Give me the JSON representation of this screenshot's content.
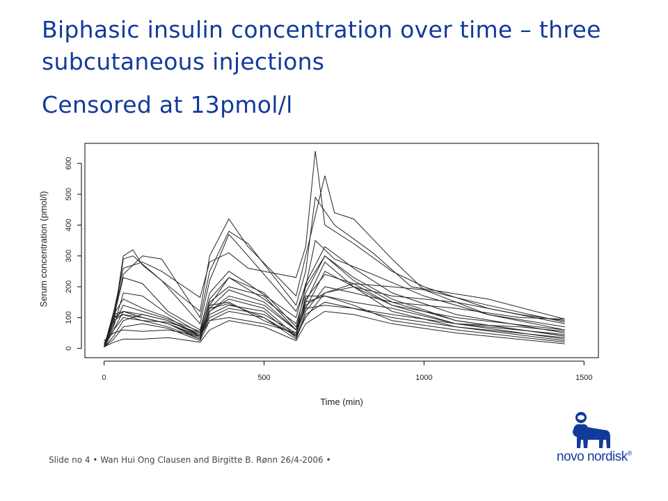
{
  "slide": {
    "title": "Biphasic insulin concentration over time – three subcutaneous injections",
    "subtitle": "Censored at 13pmol/l",
    "footer": "Slide no 4  •  Wan Hui Ong Clausen and Birgitte B. Rønn 26/4-2006  •",
    "logo_text": "novo nordisk",
    "logo_mark": "®",
    "brand_color": "#123a9c"
  },
  "chart_data": {
    "type": "line",
    "title": "",
    "xlabel": "Time (min)",
    "ylabel": "Serum concentration (pmol/l)",
    "xlim": [
      -60,
      1545
    ],
    "ylim": [
      -30,
      665
    ],
    "xticks": [
      0,
      500,
      1000,
      1500
    ],
    "yticks": [
      0,
      100,
      200,
      300,
      400,
      500,
      600
    ],
    "grid": false,
    "line_color": "#222222",
    "series": [
      {
        "values": [
          [
            0,
            5
          ],
          [
            30,
            120
          ],
          [
            60,
            260
          ],
          [
            120,
            280
          ],
          [
            180,
            250
          ],
          [
            300,
            165
          ],
          [
            330,
            280
          ],
          [
            390,
            310
          ],
          [
            450,
            260
          ],
          [
            600,
            230
          ],
          [
            630,
            330
          ],
          [
            660,
            640
          ],
          [
            690,
            400
          ],
          [
            780,
            340
          ],
          [
            900,
            250
          ],
          [
            1000,
            200
          ],
          [
            1200,
            130
          ],
          [
            1440,
            80
          ]
        ]
      },
      {
        "values": [
          [
            0,
            5
          ],
          [
            30,
            90
          ],
          [
            60,
            300
          ],
          [
            90,
            320
          ],
          [
            120,
            270
          ],
          [
            300,
            120
          ],
          [
            330,
            300
          ],
          [
            390,
            420
          ],
          [
            450,
            330
          ],
          [
            600,
            170
          ],
          [
            630,
            300
          ],
          [
            690,
            560
          ],
          [
            720,
            440
          ],
          [
            780,
            420
          ],
          [
            900,
            290
          ],
          [
            1000,
            190
          ],
          [
            1200,
            110
          ],
          [
            1440,
            60
          ]
        ]
      },
      {
        "values": [
          [
            0,
            5
          ],
          [
            30,
            110
          ],
          [
            60,
            240
          ],
          [
            120,
            300
          ],
          [
            180,
            290
          ],
          [
            300,
            100
          ],
          [
            330,
            250
          ],
          [
            390,
            380
          ],
          [
            450,
            340
          ],
          [
            600,
            140
          ],
          [
            630,
            250
          ],
          [
            660,
            490
          ],
          [
            720,
            400
          ],
          [
            840,
            310
          ],
          [
            960,
            200
          ],
          [
            1200,
            160
          ],
          [
            1440,
            95
          ]
        ]
      },
      {
        "values": [
          [
            0,
            10
          ],
          [
            30,
            80
          ],
          [
            60,
            290
          ],
          [
            90,
            300
          ],
          [
            180,
            220
          ],
          [
            300,
            80
          ],
          [
            330,
            220
          ],
          [
            390,
            370
          ],
          [
            450,
            300
          ],
          [
            600,
            120
          ],
          [
            630,
            200
          ],
          [
            660,
            350
          ],
          [
            720,
            290
          ],
          [
            840,
            240
          ],
          [
            1000,
            170
          ],
          [
            1200,
            110
          ],
          [
            1440,
            70
          ]
        ]
      },
      {
        "values": [
          [
            0,
            5
          ],
          [
            30,
            100
          ],
          [
            60,
            230
          ],
          [
            120,
            210
          ],
          [
            200,
            120
          ],
          [
            300,
            60
          ],
          [
            330,
            180
          ],
          [
            390,
            250
          ],
          [
            450,
            210
          ],
          [
            600,
            100
          ],
          [
            630,
            210
          ],
          [
            690,
            330
          ],
          [
            780,
            260
          ],
          [
            900,
            180
          ],
          [
            1100,
            110
          ],
          [
            1440,
            50
          ]
        ]
      },
      {
        "values": [
          [
            0,
            5
          ],
          [
            30,
            70
          ],
          [
            60,
            180
          ],
          [
            120,
            170
          ],
          [
            200,
            110
          ],
          [
            300,
            50
          ],
          [
            330,
            140
          ],
          [
            390,
            230
          ],
          [
            500,
            160
          ],
          [
            600,
            80
          ],
          [
            630,
            180
          ],
          [
            690,
            300
          ],
          [
            780,
            230
          ],
          [
            900,
            160
          ],
          [
            1100,
            90
          ],
          [
            1440,
            40
          ]
        ]
      },
      {
        "values": [
          [
            0,
            5
          ],
          [
            30,
            110
          ],
          [
            60,
            160
          ],
          [
            120,
            130
          ],
          [
            200,
            100
          ],
          [
            300,
            40
          ],
          [
            330,
            150
          ],
          [
            390,
            200
          ],
          [
            500,
            170
          ],
          [
            600,
            60
          ],
          [
            630,
            130
          ],
          [
            690,
            250
          ],
          [
            780,
            200
          ],
          [
            900,
            140
          ],
          [
            1100,
            80
          ],
          [
            1440,
            30
          ]
        ]
      },
      {
        "values": [
          [
            0,
            15
          ],
          [
            30,
            90
          ],
          [
            60,
            110
          ],
          [
            120,
            100
          ],
          [
            200,
            80
          ],
          [
            300,
            30
          ],
          [
            330,
            120
          ],
          [
            390,
            160
          ],
          [
            500,
            130
          ],
          [
            600,
            40
          ],
          [
            630,
            100
          ],
          [
            690,
            180
          ],
          [
            780,
            200
          ],
          [
            900,
            170
          ],
          [
            1100,
            150
          ],
          [
            1300,
            110
          ],
          [
            1440,
            90
          ]
        ]
      },
      {
        "values": [
          [
            0,
            5
          ],
          [
            30,
            60
          ],
          [
            60,
            100
          ],
          [
            120,
            90
          ],
          [
            200,
            70
          ],
          [
            300,
            30
          ],
          [
            330,
            110
          ],
          [
            390,
            140
          ],
          [
            500,
            120
          ],
          [
            600,
            35
          ],
          [
            630,
            120
          ],
          [
            690,
            200
          ],
          [
            780,
            180
          ],
          [
            900,
            150
          ],
          [
            1100,
            130
          ],
          [
            1300,
            100
          ],
          [
            1440,
            95
          ]
        ]
      },
      {
        "values": [
          [
            0,
            5
          ],
          [
            30,
            40
          ],
          [
            60,
            90
          ],
          [
            120,
            110
          ],
          [
            200,
            90
          ],
          [
            300,
            40
          ],
          [
            330,
            100
          ],
          [
            390,
            130
          ],
          [
            500,
            110
          ],
          [
            600,
            50
          ],
          [
            630,
            140
          ],
          [
            690,
            180
          ],
          [
            780,
            210
          ],
          [
            900,
            200
          ],
          [
            1000,
            190
          ],
          [
            1200,
            140
          ],
          [
            1440,
            85
          ]
        ]
      },
      {
        "values": [
          [
            0,
            5
          ],
          [
            30,
            100
          ],
          [
            60,
            120
          ],
          [
            120,
            100
          ],
          [
            200,
            80
          ],
          [
            300,
            35
          ],
          [
            330,
            130
          ],
          [
            390,
            145
          ],
          [
            500,
            100
          ],
          [
            600,
            40
          ],
          [
            630,
            150
          ],
          [
            690,
            170
          ],
          [
            780,
            150
          ],
          [
            900,
            130
          ],
          [
            1100,
            80
          ],
          [
            1440,
            45
          ]
        ]
      },
      {
        "values": [
          [
            0,
            5
          ],
          [
            30,
            30
          ],
          [
            60,
            70
          ],
          [
            120,
            80
          ],
          [
            200,
            65
          ],
          [
            300,
            25
          ],
          [
            330,
            90
          ],
          [
            390,
            120
          ],
          [
            500,
            100
          ],
          [
            600,
            30
          ],
          [
            630,
            110
          ],
          [
            690,
            150
          ],
          [
            780,
            130
          ],
          [
            900,
            100
          ],
          [
            1100,
            70
          ],
          [
            1440,
            25
          ]
        ]
      },
      {
        "values": [
          [
            0,
            5
          ],
          [
            30,
            100
          ],
          [
            60,
            110
          ],
          [
            120,
            90
          ],
          [
            200,
            85
          ],
          [
            300,
            50
          ],
          [
            330,
            140
          ],
          [
            390,
            150
          ],
          [
            500,
            90
          ],
          [
            600,
            45
          ],
          [
            630,
            170
          ],
          [
            690,
            170
          ],
          [
            780,
            140
          ],
          [
            900,
            90
          ],
          [
            1100,
            60
          ],
          [
            1440,
            20
          ]
        ]
      },
      {
        "values": [
          [
            0,
            25
          ],
          [
            30,
            50
          ],
          [
            60,
            60
          ],
          [
            120,
            55
          ],
          [
            200,
            60
          ],
          [
            300,
            40
          ],
          [
            330,
            90
          ],
          [
            390,
            100
          ],
          [
            500,
            80
          ],
          [
            600,
            50
          ],
          [
            630,
            130
          ],
          [
            690,
            140
          ],
          [
            780,
            130
          ],
          [
            900,
            110
          ],
          [
            1100,
            80
          ],
          [
            1300,
            70
          ],
          [
            1440,
            55
          ]
        ]
      },
      {
        "values": [
          [
            0,
            5
          ],
          [
            30,
            20
          ],
          [
            60,
            30
          ],
          [
            120,
            30
          ],
          [
            200,
            35
          ],
          [
            300,
            20
          ],
          [
            330,
            60
          ],
          [
            390,
            90
          ],
          [
            500,
            70
          ],
          [
            600,
            25
          ],
          [
            630,
            80
          ],
          [
            690,
            120
          ],
          [
            780,
            110
          ],
          [
            900,
            80
          ],
          [
            1100,
            50
          ],
          [
            1440,
            15
          ]
        ]
      },
      {
        "values": [
          [
            0,
            5
          ],
          [
            30,
            110
          ],
          [
            60,
            120
          ],
          [
            120,
            110
          ],
          [
            200,
            90
          ],
          [
            300,
            45
          ],
          [
            330,
            120
          ],
          [
            390,
            170
          ],
          [
            500,
            140
          ],
          [
            600,
            60
          ],
          [
            630,
            200
          ],
          [
            690,
            300
          ],
          [
            780,
            220
          ],
          [
            900,
            150
          ],
          [
            1100,
            90
          ],
          [
            1440,
            40
          ]
        ]
      },
      {
        "values": [
          [
            0,
            5
          ],
          [
            30,
            60
          ],
          [
            60,
            120
          ],
          [
            120,
            100
          ],
          [
            200,
            80
          ],
          [
            300,
            40
          ],
          [
            330,
            130
          ],
          [
            390,
            190
          ],
          [
            500,
            150
          ],
          [
            600,
            60
          ],
          [
            630,
            160
          ],
          [
            690,
            240
          ],
          [
            780,
            210
          ],
          [
            900,
            140
          ],
          [
            1100,
            100
          ],
          [
            1440,
            60
          ]
        ]
      },
      {
        "values": [
          [
            0,
            5
          ],
          [
            30,
            80
          ],
          [
            60,
            140
          ],
          [
            120,
            120
          ],
          [
            200,
            95
          ],
          [
            300,
            55
          ],
          [
            330,
            160
          ],
          [
            390,
            230
          ],
          [
            500,
            180
          ],
          [
            600,
            70
          ],
          [
            630,
            150
          ],
          [
            690,
            280
          ],
          [
            780,
            200
          ],
          [
            900,
            120
          ],
          [
            1100,
            70
          ],
          [
            1440,
            35
          ]
        ]
      }
    ]
  }
}
